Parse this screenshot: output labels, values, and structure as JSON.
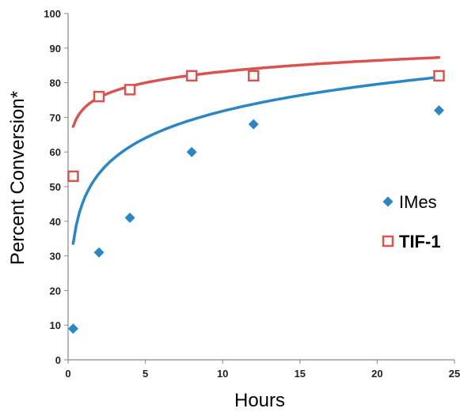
{
  "chart_data": {
    "type": "scatter",
    "title": "",
    "xlabel": "Hours",
    "ylabel": "Percent Conversion*",
    "xlim": [
      0,
      25
    ],
    "ylim": [
      0,
      100
    ],
    "x_ticks": [
      0,
      5,
      10,
      15,
      20,
      25
    ],
    "y_ticks": [
      0,
      10,
      20,
      30,
      40,
      50,
      60,
      70,
      80,
      90,
      100
    ],
    "grid": false,
    "legend_position": "right",
    "series": [
      {
        "name": "IMes",
        "marker": "filled-diamond",
        "color": "#2b86c5",
        "x": [
          0.33,
          2,
          4,
          8,
          12,
          24
        ],
        "y": [
          9,
          31,
          41,
          60,
          68,
          72
        ],
        "trendline": {
          "type": "logarithmic",
          "a": 46.0,
          "b": 11.2,
          "x_range": [
            0.33,
            24
          ]
        }
      },
      {
        "name": "TIF-1",
        "marker": "open-square",
        "color": "#d9534f",
        "x": [
          0.33,
          2,
          4,
          8,
          12,
          24
        ],
        "y": [
          53,
          76,
          78,
          82,
          82,
          82
        ],
        "trendline": {
          "type": "logarithmic",
          "a": 72.5,
          "b": 4.65,
          "x_range": [
            0.33,
            24
          ]
        }
      }
    ]
  }
}
